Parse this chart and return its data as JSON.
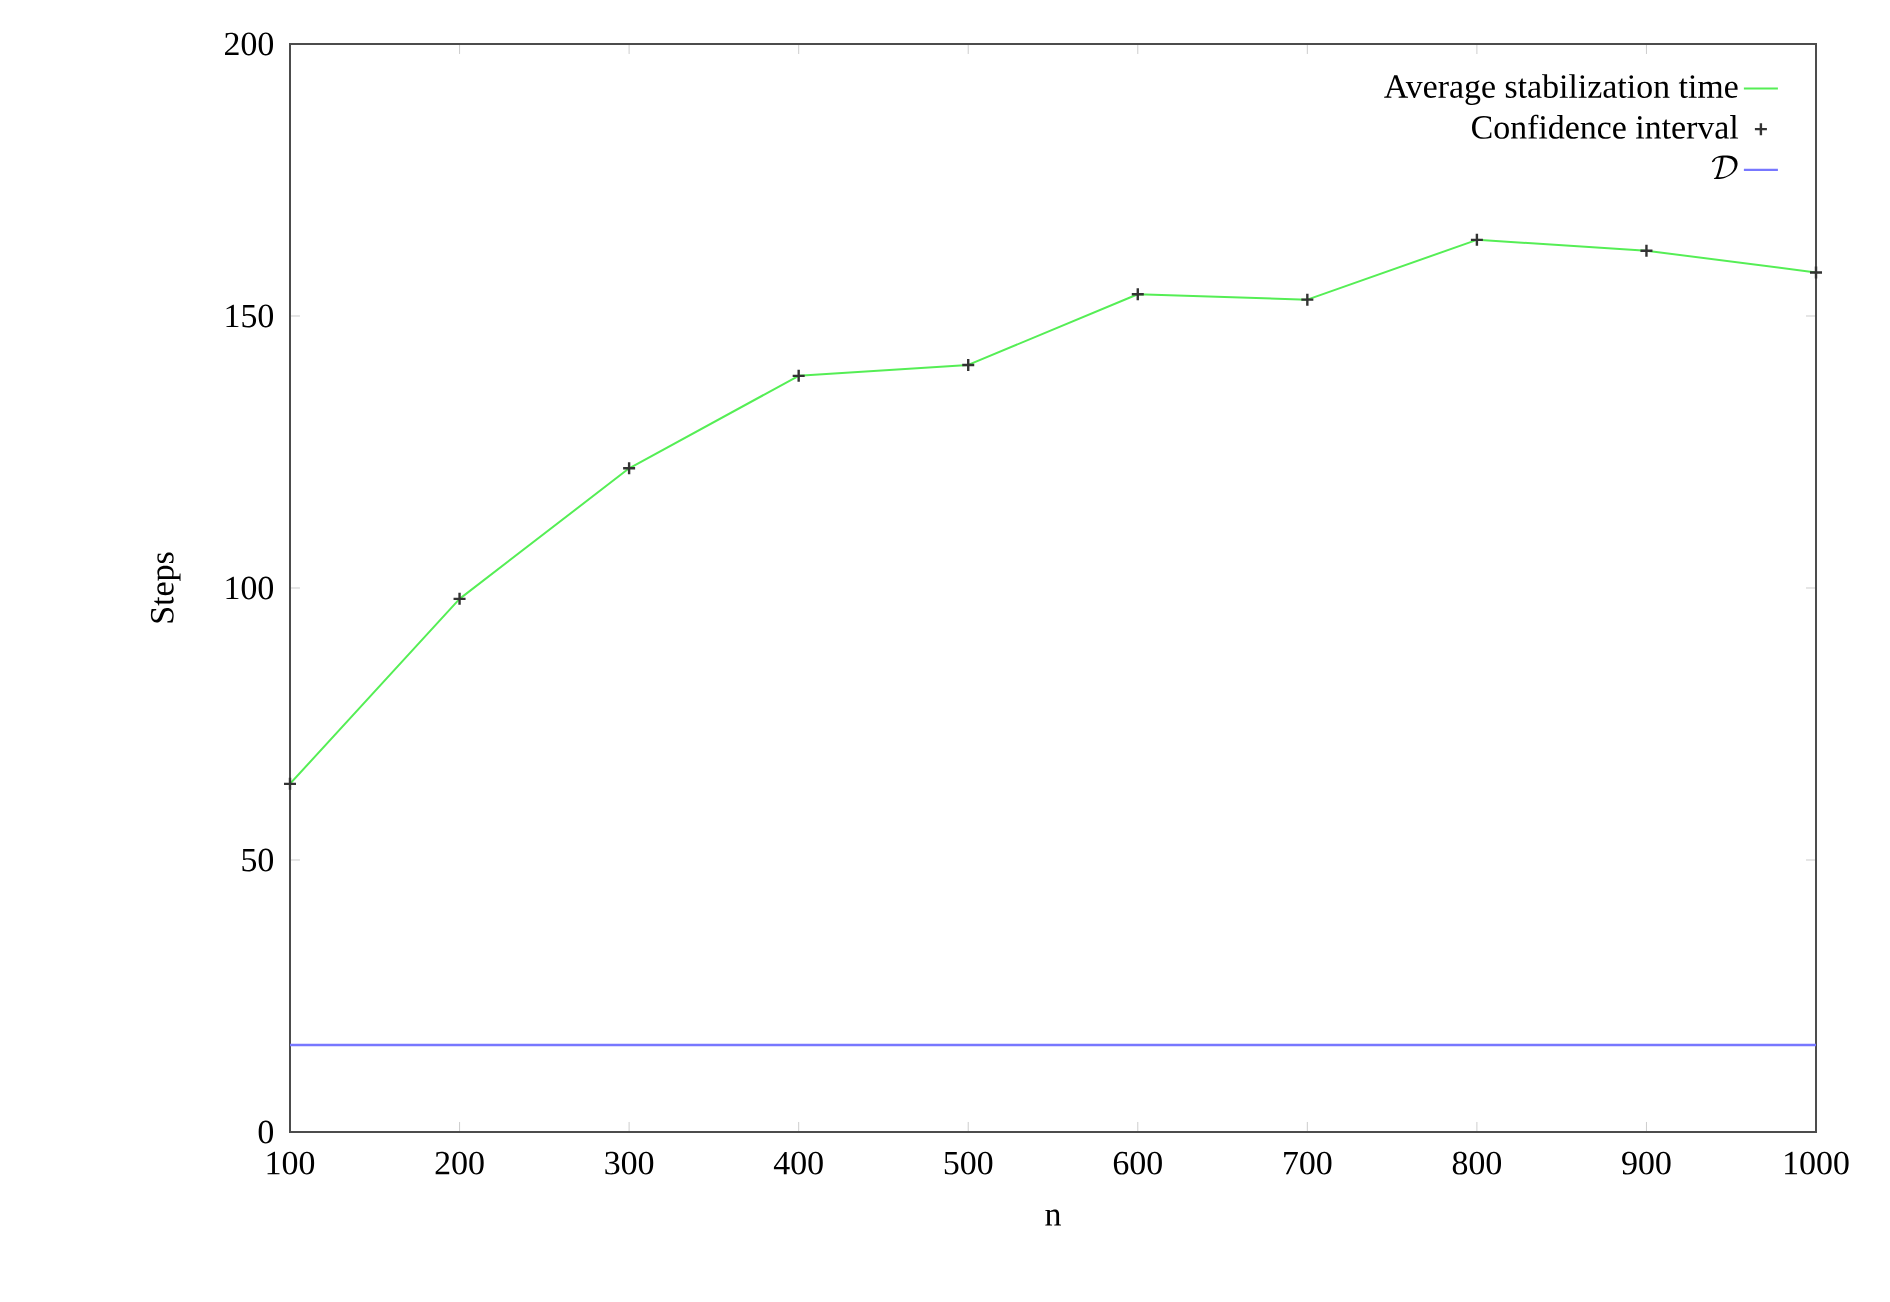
{
  "chart_data": {
    "type": "line",
    "xlabel": "$n$",
    "ylabel": "Steps",
    "x": [
      100,
      200,
      300,
      400,
      500,
      600,
      700,
      800,
      900,
      1000
    ],
    "series": [
      {
        "name": "Average stabilization time",
        "color": "#55ee55",
        "values": [
          64,
          98,
          122,
          139,
          141,
          154,
          153,
          164,
          162,
          158
        ]
      },
      {
        "name": "Confidence interval",
        "type": "scatter",
        "marker": "cross",
        "color": "#333333",
        "values": [
          64,
          98,
          122,
          139,
          141,
          154,
          153,
          164,
          162,
          158
        ]
      },
      {
        "name": "\\mathcal{D}",
        "color": "#7777ff",
        "x": [
          100,
          1000
        ],
        "values": [
          16,
          16
        ]
      }
    ],
    "xlim": [
      100,
      1000
    ],
    "ylim": [
      0,
      200
    ],
    "xticks": [
      100,
      200,
      300,
      400,
      500,
      600,
      700,
      800,
      900,
      1000
    ],
    "yticks": [
      0,
      50,
      100,
      150,
      200
    ],
    "legend": "top right",
    "grid": false
  }
}
